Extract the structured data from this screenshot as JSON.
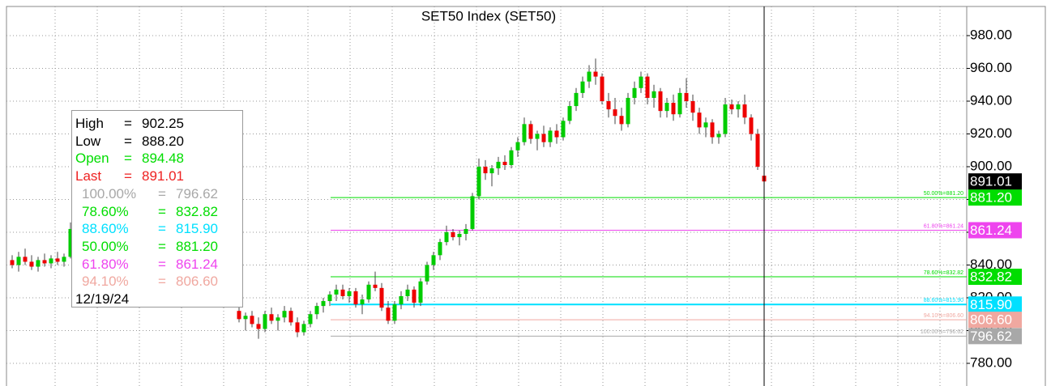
{
  "chart_data": {
    "type": "candlestick",
    "title": "SET50 Index  (SET50)",
    "ylim": [
      780,
      980
    ],
    "yticks": [
      {
        "value": 780,
        "label": "780.00"
      },
      {
        "value": 800,
        "label": "800.00"
      },
      {
        "value": 820,
        "label": "820.00"
      },
      {
        "value": 840,
        "label": "840.00"
      },
      {
        "value": 860,
        "label": "860.00"
      },
      {
        "value": 880,
        "label": "880.00"
      },
      {
        "value": 900,
        "label": "900.00"
      },
      {
        "value": 920,
        "label": "920.00"
      },
      {
        "value": 940,
        "label": "940.00"
      },
      {
        "value": 960,
        "label": "960.00"
      },
      {
        "value": 980,
        "label": "980.00"
      }
    ],
    "grid": true,
    "up_color": "#00cc00",
    "down_color": "#ee0000",
    "ohlc": [
      [
        843,
        846,
        838,
        840
      ],
      [
        840,
        848,
        836,
        845
      ],
      [
        845,
        850,
        840,
        842
      ],
      [
        842,
        846,
        837,
        839
      ],
      [
        839,
        845,
        836,
        843
      ],
      [
        843,
        847,
        839,
        841
      ],
      [
        841,
        846,
        838,
        844
      ],
      [
        844,
        848,
        840,
        842
      ],
      [
        842,
        847,
        839,
        845
      ],
      [
        845,
        866,
        844,
        862
      ],
      null,
      null,
      null,
      null,
      null,
      null,
      null,
      null,
      null,
      null,
      null,
      null,
      null,
      null,
      null,
      null,
      null,
      null,
      null,
      null,
      null,
      null,
      null,
      null,
      null,
      [
        812,
        815,
        805,
        807
      ],
      [
        807,
        811,
        800,
        809
      ],
      [
        809,
        812,
        802,
        804
      ],
      [
        804,
        808,
        795,
        801
      ],
      [
        801,
        812,
        799,
        810
      ],
      [
        810,
        814,
        804,
        806
      ],
      [
        806,
        810,
        800,
        808
      ],
      [
        808,
        815,
        805,
        812
      ],
      [
        812,
        814,
        803,
        805
      ],
      [
        805,
        808,
        796,
        799
      ],
      [
        799,
        806,
        797,
        804
      ],
      [
        804,
        812,
        802,
        810
      ],
      [
        810,
        817,
        807,
        815
      ],
      [
        815,
        820,
        811,
        818
      ],
      [
        818,
        824,
        815,
        822
      ],
      [
        822,
        828,
        818,
        825
      ],
      [
        825,
        828,
        819,
        821
      ],
      [
        821,
        826,
        817,
        824
      ],
      [
        824,
        826,
        814,
        816
      ],
      [
        816,
        822,
        810,
        819
      ],
      [
        819,
        830,
        817,
        828
      ],
      [
        828,
        836,
        824,
        826
      ],
      [
        826,
        829,
        812,
        814
      ],
      [
        814,
        818,
        804,
        806
      ],
      [
        806,
        818,
        804,
        816
      ],
      [
        816,
        824,
        813,
        821
      ],
      [
        821,
        828,
        818,
        825
      ],
      [
        825,
        827,
        814,
        817
      ],
      [
        817,
        832,
        815,
        830
      ],
      [
        830,
        842,
        828,
        840
      ],
      [
        840,
        848,
        837,
        846
      ],
      [
        846,
        856,
        843,
        854
      ],
      [
        854,
        864,
        852,
        860
      ],
      [
        860,
        862,
        855,
        857
      ],
      [
        857,
        861,
        852,
        859
      ],
      [
        859,
        865,
        855,
        862
      ],
      [
        862,
        884,
        861,
        882
      ],
      [
        882,
        905,
        880,
        900
      ],
      [
        900,
        904,
        892,
        896
      ],
      [
        896,
        901,
        888,
        899
      ],
      [
        899,
        906,
        895,
        903
      ],
      [
        903,
        907,
        898,
        901
      ],
      [
        901,
        912,
        899,
        910
      ],
      [
        910,
        918,
        906,
        915
      ],
      [
        915,
        930,
        913,
        926
      ],
      [
        926,
        928,
        914,
        917
      ],
      [
        917,
        922,
        910,
        920
      ],
      [
        920,
        925,
        912,
        915
      ],
      [
        915,
        924,
        912,
        922
      ],
      [
        922,
        926,
        914,
        918
      ],
      [
        918,
        930,
        916,
        928
      ],
      [
        928,
        940,
        926,
        937
      ],
      [
        937,
        948,
        934,
        945
      ],
      [
        945,
        955,
        942,
        952
      ],
      [
        952,
        962,
        948,
        958
      ],
      [
        958,
        966,
        950,
        955
      ],
      [
        955,
        957,
        938,
        940
      ],
      [
        940,
        945,
        930,
        935
      ],
      [
        935,
        942,
        926,
        931
      ],
      [
        931,
        936,
        922,
        926
      ],
      [
        926,
        945,
        924,
        942
      ],
      [
        942,
        952,
        938,
        948
      ],
      [
        948,
        958,
        945,
        955
      ],
      [
        955,
        957,
        938,
        942
      ],
      [
        942,
        950,
        936,
        946
      ],
      [
        946,
        948,
        930,
        934
      ],
      [
        934,
        942,
        930,
        939
      ],
      [
        939,
        944,
        928,
        932
      ],
      [
        932,
        948,
        930,
        945
      ],
      [
        945,
        954,
        936,
        940
      ],
      [
        940,
        944,
        928,
        933
      ],
      [
        933,
        936,
        920,
        924
      ],
      [
        924,
        930,
        918,
        927
      ],
      [
        927,
        929,
        914,
        918
      ],
      [
        918,
        922,
        914,
        920
      ],
      [
        920,
        942,
        918,
        938
      ],
      [
        938,
        941,
        932,
        935
      ],
      [
        935,
        940,
        930,
        938
      ],
      [
        938,
        944,
        926,
        930
      ],
      [
        930,
        932,
        916,
        920
      ],
      [
        920,
        923,
        898,
        900
      ],
      [
        894.48,
        902.25,
        888.2,
        891.01
      ]
    ],
    "info": {
      "rows": [
        {
          "name": "High",
          "value": 902.25,
          "value_label": "902.25",
          "color": "#000000"
        },
        {
          "name": "Low",
          "value": 888.2,
          "value_label": "888.20",
          "color": "#000000"
        },
        {
          "name": "Open",
          "value": 894.48,
          "value_label": "894.48",
          "color": "#00dd00"
        },
        {
          "name": "Last",
          "value": 891.01,
          "value_label": "891.01",
          "color": "#ee2222"
        }
      ],
      "date": "12/19/24"
    },
    "fib": [
      {
        "pct": "100.00%",
        "value": 796.62,
        "value_label": "796.62",
        "line_label": "100.00%=796.62",
        "color": "#a8a8a8"
      },
      {
        "pct": "78.60%",
        "value": 832.82,
        "value_label": "832.82",
        "line_label": "78.60%=832.82",
        "color": "#00dd00"
      },
      {
        "pct": "88.60%",
        "value": 815.9,
        "value_label": "815.90",
        "line_label": "88.60%=815.90",
        "color": "#00e0ff"
      },
      {
        "pct": "50.00%",
        "value": 881.2,
        "value_label": "881.20",
        "line_label": "50.00%=881.20",
        "color": "#00dd00"
      },
      {
        "pct": "61.80%",
        "value": 861.24,
        "value_label": "861.24",
        "line_label": "61.80%=861.24",
        "color": "#ee44ee"
      },
      {
        "pct": "94.10%",
        "value": 806.6,
        "value_label": "806.60",
        "line_label": "94.10%=806.60",
        "color": "#f0a8a0"
      }
    ]
  }
}
